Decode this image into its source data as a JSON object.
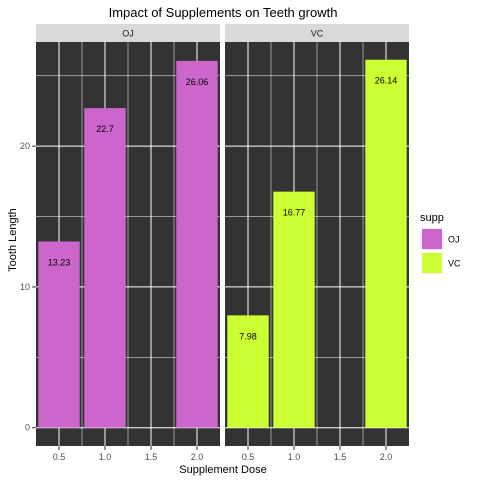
{
  "chart_data": {
    "type": "bar",
    "title": "Impact of Supplements on Teeth growth",
    "xlabel": "Supplement Dose",
    "ylabel": "Tooth Length",
    "facet_variable": "supp",
    "facets": [
      "OJ",
      "VC"
    ],
    "x_ticks": [
      "0.5",
      "1.0",
      "1.5",
      "2.0"
    ],
    "xlim": [
      0.25,
      2.25
    ],
    "y_ticks": [
      0,
      10,
      20
    ],
    "ylim": [
      -1.3,
      27.4
    ],
    "grid": true,
    "series": [
      {
        "name": "OJ",
        "color": "#cc66cc",
        "x": [
          0.5,
          1.0,
          2.0
        ],
        "values": [
          13.23,
          22.7,
          26.06
        ],
        "labels": [
          "13.23",
          "22.7",
          "26.06"
        ]
      },
      {
        "name": "VC",
        "color": "#ccff33",
        "x": [
          0.5,
          1.0,
          2.0
        ],
        "values": [
          7.98,
          16.77,
          26.14
        ],
        "labels": [
          "7.98",
          "16.77",
          "26.14"
        ]
      }
    ],
    "legend": {
      "title": "supp",
      "position": "right",
      "items": [
        "OJ",
        "VC"
      ]
    },
    "panel_background": "#333333",
    "strip_background": "#d9d9d9"
  }
}
